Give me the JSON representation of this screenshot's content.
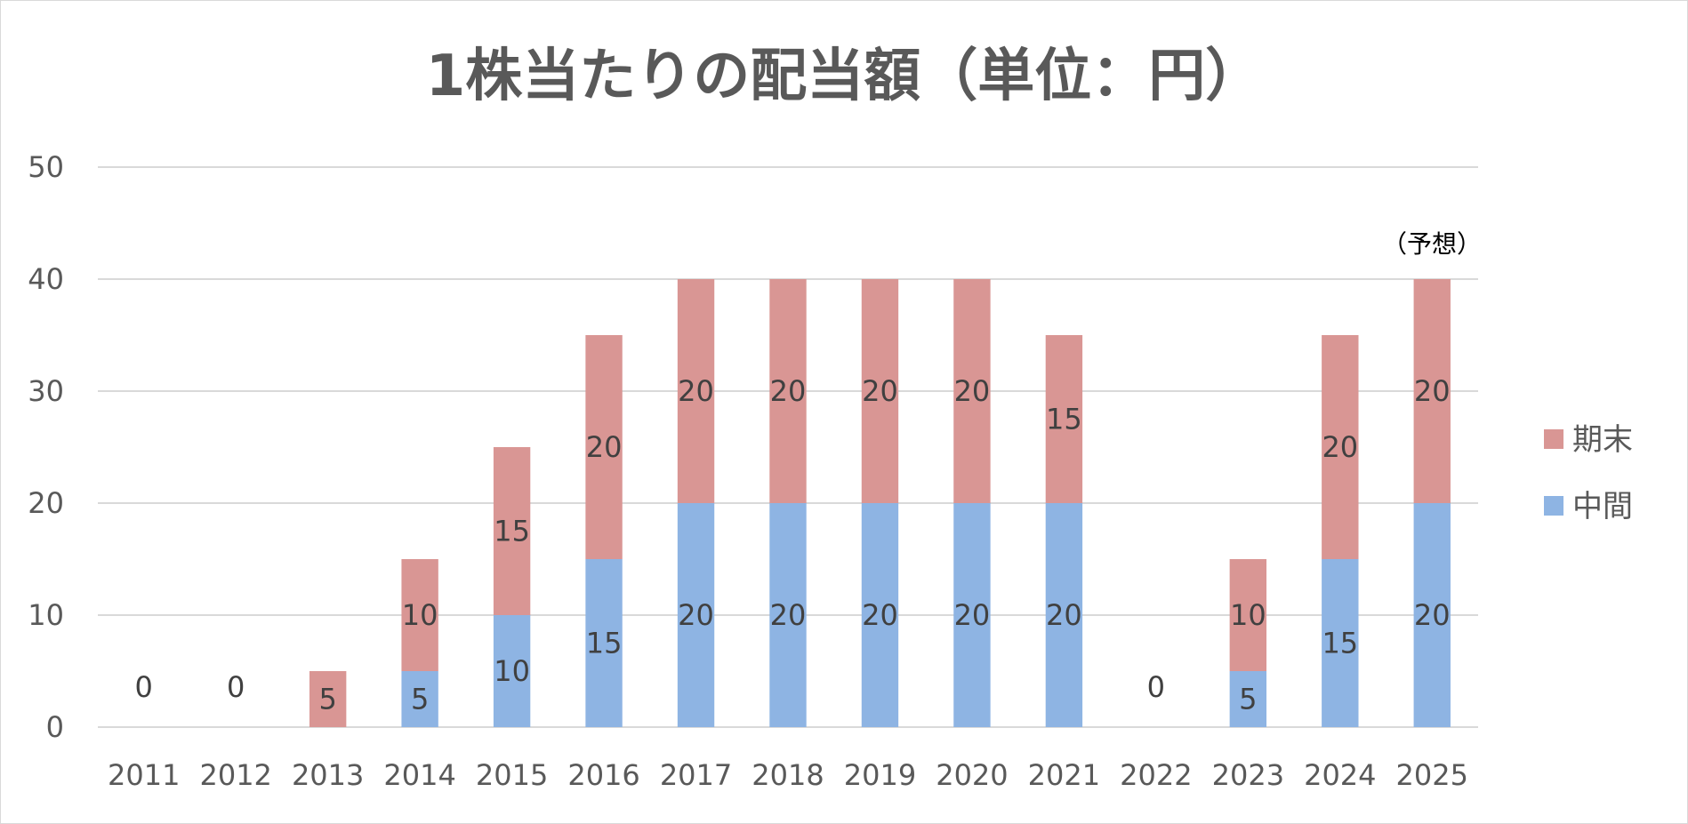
{
  "chart_data": {
    "type": "bar",
    "stacked": true,
    "title": "1株当たりの配当額（単位：円）",
    "categories": [
      "2011",
      "2012",
      "2013",
      "2014",
      "2015",
      "2016",
      "2017",
      "2018",
      "2019",
      "2020",
      "2021",
      "2022",
      "2023",
      "2024",
      "2025"
    ],
    "series": [
      {
        "name": "中間",
        "color": "#8EB4E3",
        "values": [
          0,
          0,
          0,
          5,
          10,
          15,
          20,
          20,
          20,
          20,
          20,
          0,
          5,
          15,
          20
        ]
      },
      {
        "name": "期末",
        "color": "#D99694",
        "values": [
          0,
          0,
          5,
          10,
          15,
          20,
          20,
          20,
          20,
          20,
          15,
          0,
          10,
          20,
          20
        ]
      }
    ],
    "zero_labels": [
      "0",
      "0",
      "0"
    ],
    "ylim": [
      0,
      50
    ],
    "yticks": [
      0,
      10,
      20,
      30,
      40,
      50
    ],
    "grid": true,
    "legend_position": "right",
    "legend_order": [
      "期末",
      "中間"
    ],
    "annotation": "（予想）"
  }
}
